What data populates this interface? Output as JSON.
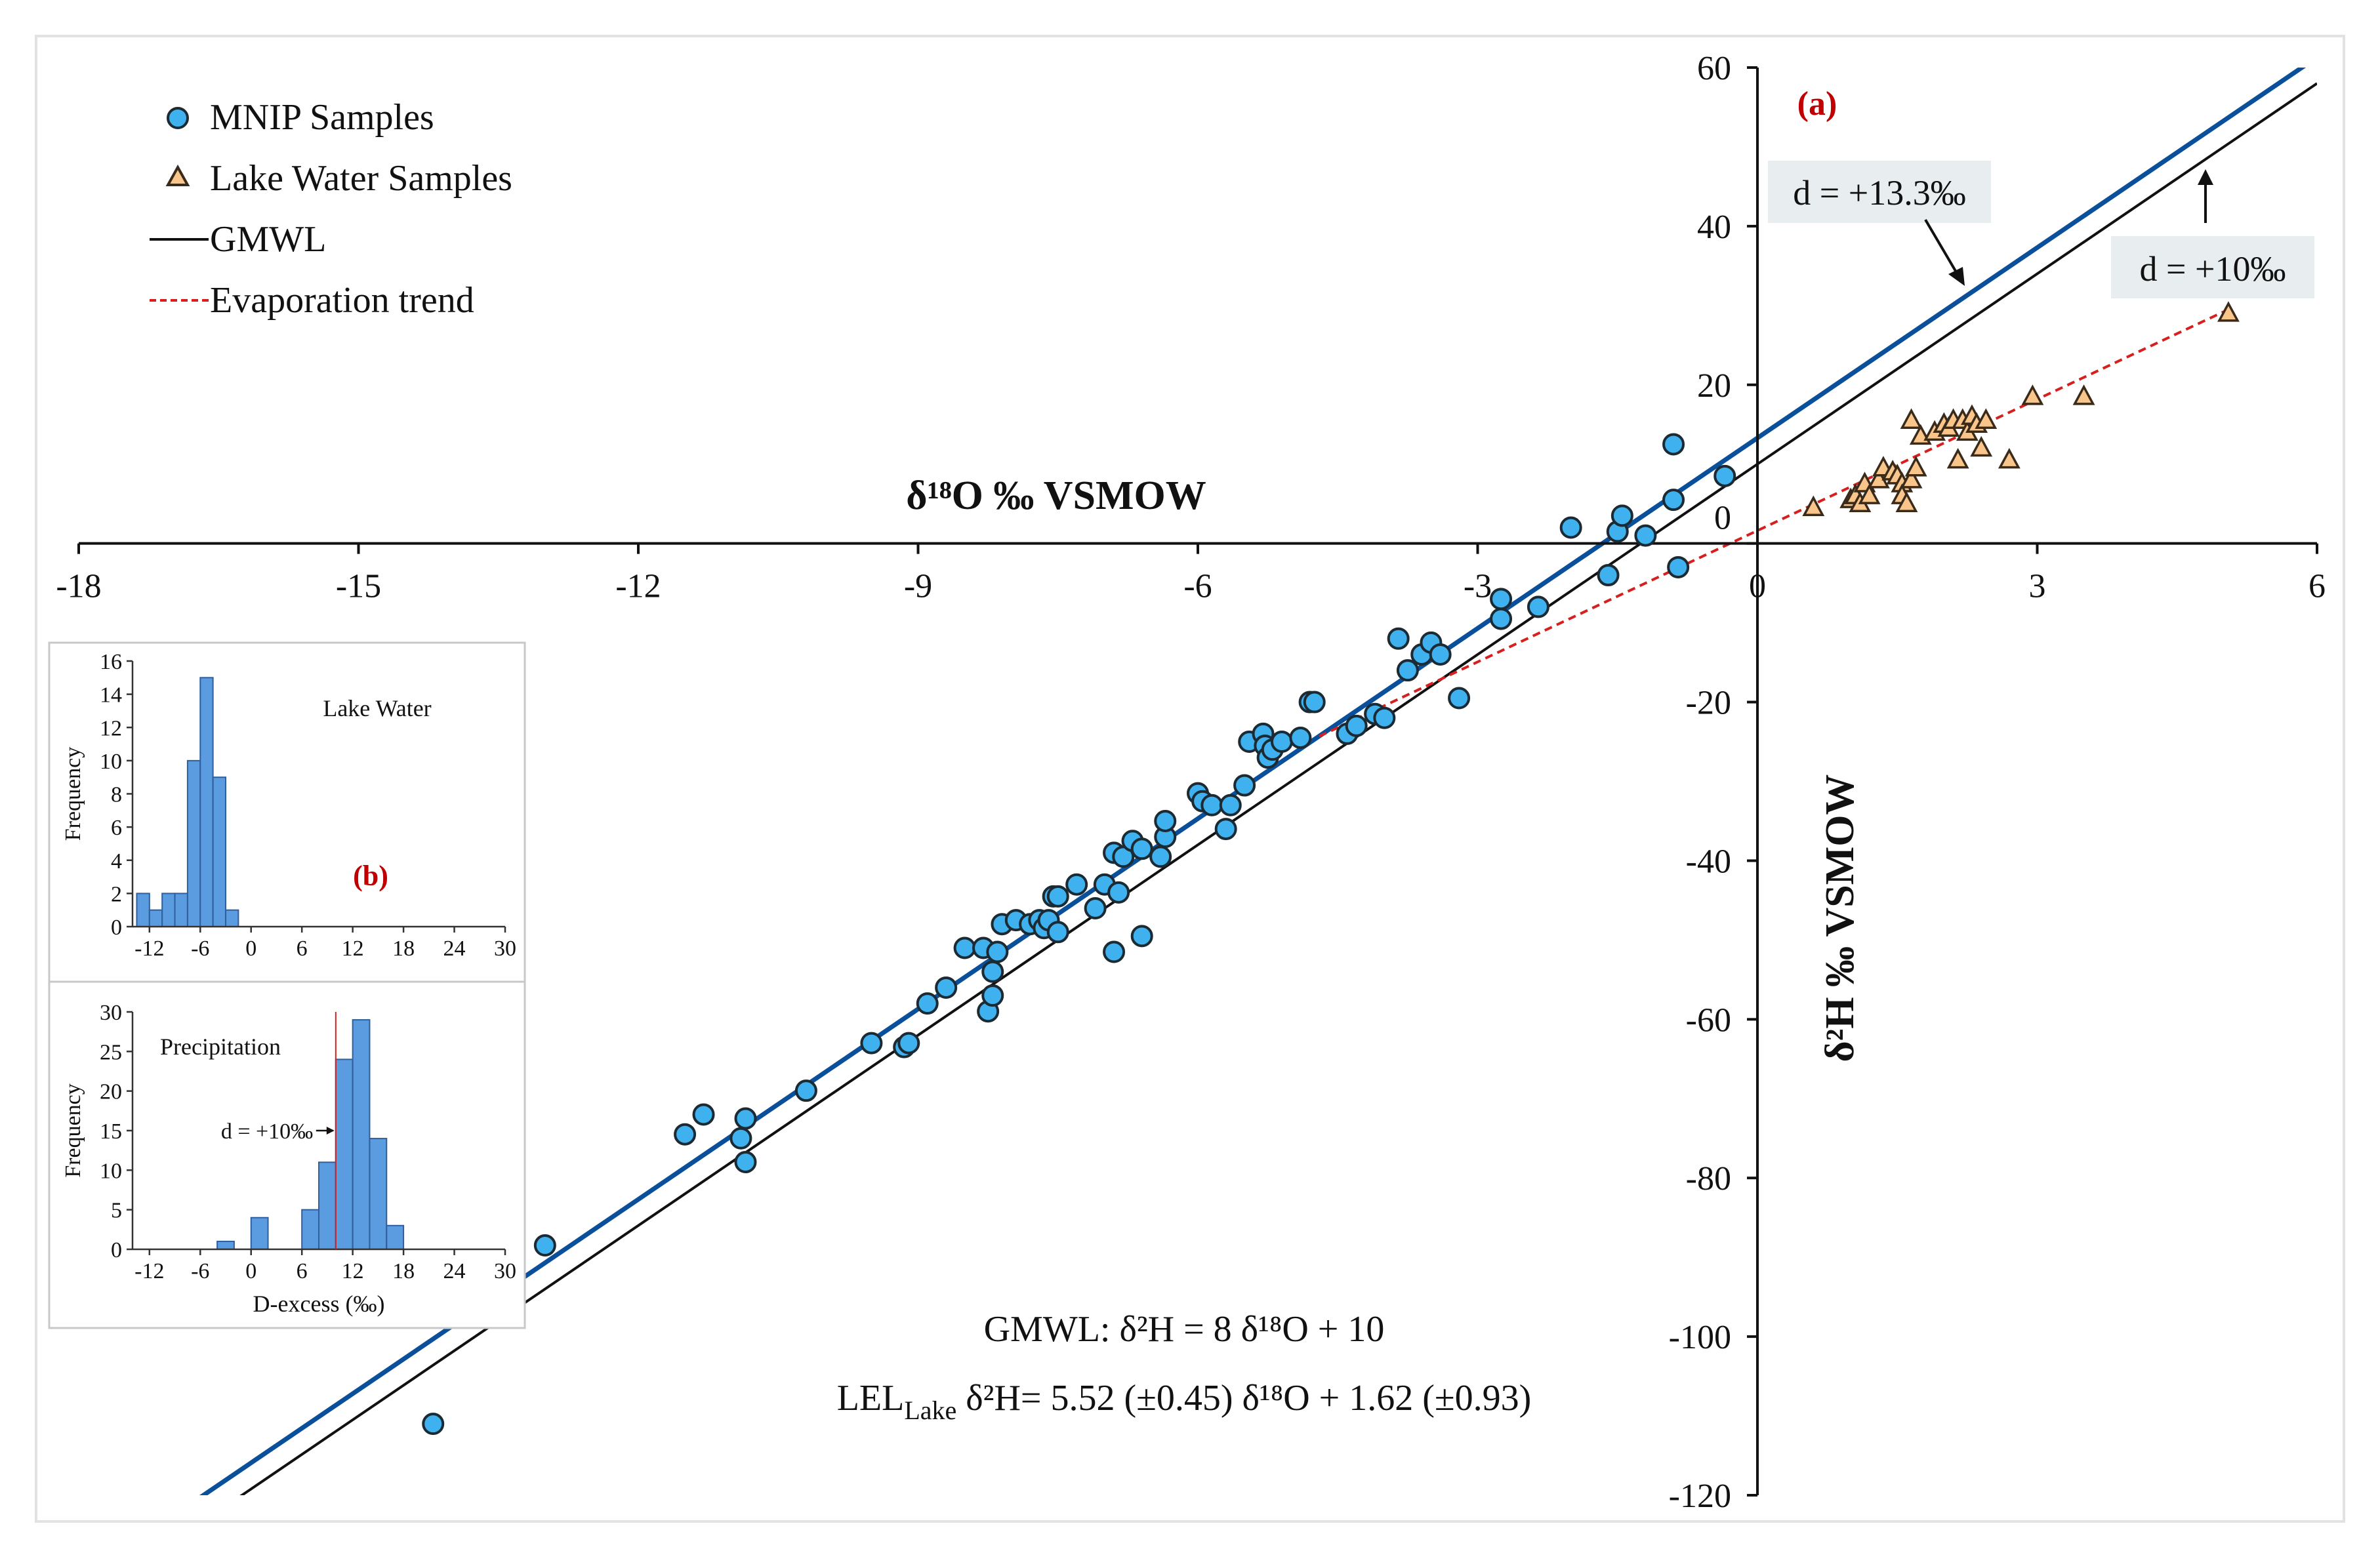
{
  "figure": {
    "panel_a_label": "(a)",
    "panel_b_label": "(b)",
    "colors": {
      "mnip_fill": "#3fb1ef",
      "mnip_stroke": "#1b2a33",
      "lake_fill": "#f9c58b",
      "lake_stroke": "#3a2a1a",
      "gmwl": "#111111",
      "lmwl": "#0a4f9a",
      "evap": "#d6201f",
      "panel_label": "#c00000",
      "hist_bar": "#5b9be0",
      "hist_bar_stroke": "#2f5f9c",
      "callout_bg": "#e8eef0"
    }
  },
  "legend": {
    "mnip": "MNIP Samples",
    "lake": "Lake Water Samples",
    "gmwl": "GMWL",
    "evap": "Evaporation trend"
  },
  "annotations": {
    "d133": "d = +13.3‰",
    "d10": "d = +10‰",
    "eq_gmwl": "GMWL: δ²H = 8 δ¹⁸O + 10",
    "eq_lel_prefix": "LEL",
    "eq_lel_sub": "Lake",
    "eq_lel_rest": " δ²H= 5.52 (±0.45) δ¹⁸O + 1.62 (±0.93)"
  },
  "chart_data": [
    {
      "type": "scatter",
      "xlabel": "δ¹⁸O ‰ VSMOW",
      "ylabel": "δ²H ‰ VSMOW",
      "xlim": [
        -18,
        6
      ],
      "ylim": [
        -120,
        60
      ],
      "xticks": [
        -18,
        -15,
        -12,
        -9,
        -6,
        -3,
        0,
        3,
        6
      ],
      "yticks": [
        -120,
        -100,
        -80,
        -60,
        -40,
        -20,
        0,
        20,
        40,
        60
      ],
      "ytick_labels": [
        "-120",
        "-100",
        "-80",
        "-60",
        "-40",
        "-20",
        "0",
        "20",
        "40",
        "60"
      ],
      "xtick_labels": [
        "-18",
        "-15",
        "-12",
        "-9",
        "-6",
        "-3",
        "0",
        "3",
        "6"
      ],
      "lines": [
        {
          "name": "GMWL",
          "slope": 8,
          "intercept": 10
        },
        {
          "name": "LMWL",
          "slope": 8,
          "intercept": 13.3
        },
        {
          "name": "Evaporation trend",
          "slope": 5.52,
          "intercept": 1.62,
          "x_range": [
            -4.7,
            5
          ]
        }
      ],
      "series": [
        {
          "name": "MNIP Samples",
          "points": [
            [
              -14.2,
              -111
            ],
            [
              -13.0,
              -88.5
            ],
            [
              -11.5,
              -74.5
            ],
            [
              -11.3,
              -72
            ],
            [
              -10.9,
              -75
            ],
            [
              -10.85,
              -72.5
            ],
            [
              -10.85,
              -78
            ],
            [
              -10.2,
              -69
            ],
            [
              -9.5,
              -63
            ],
            [
              -9.15,
              -63.5
            ],
            [
              -9.1,
              -63
            ],
            [
              -8.9,
              -58
            ],
            [
              -8.7,
              -56
            ],
            [
              -8.5,
              -51
            ],
            [
              -8.3,
              -51
            ],
            [
              -8.25,
              -59
            ],
            [
              -8.2,
              -57
            ],
            [
              -8.15,
              -51.5
            ],
            [
              -8.2,
              -54
            ],
            [
              -8.1,
              -48
            ],
            [
              -7.95,
              -47.5
            ],
            [
              -7.8,
              -48
            ],
            [
              -7.7,
              -47.5
            ],
            [
              -7.65,
              -48.5
            ],
            [
              -7.6,
              -47.5
            ],
            [
              -7.55,
              -44.5
            ],
            [
              -7.5,
              -44.5
            ],
            [
              -7.5,
              -49
            ],
            [
              -7.3,
              -43
            ],
            [
              -7.1,
              -46
            ],
            [
              -7.0,
              -43
            ],
            [
              -6.9,
              -39
            ],
            [
              -6.85,
              -44
            ],
            [
              -6.9,
              -51.5
            ],
            [
              -6.8,
              -39.5
            ],
            [
              -6.7,
              -37.5
            ],
            [
              -6.6,
              -49.5
            ],
            [
              -6.6,
              -38.5
            ],
            [
              -6.4,
              -39.5
            ],
            [
              -6.35,
              -37
            ],
            [
              -6.35,
              -35
            ],
            [
              -6.0,
              -31.5
            ],
            [
              -5.95,
              -32.5
            ],
            [
              -5.85,
              -33
            ],
            [
              -5.7,
              -36
            ],
            [
              -5.65,
              -33
            ],
            [
              -5.5,
              -30.5
            ],
            [
              -5.45,
              -25
            ],
            [
              -5.3,
              -24
            ],
            [
              -5.28,
              -25.5
            ],
            [
              -5.25,
              -27
            ],
            [
              -5.2,
              -26
            ],
            [
              -5.1,
              -25
            ],
            [
              -4.9,
              -24.5
            ],
            [
              -4.8,
              -20
            ],
            [
              -4.75,
              -20
            ],
            [
              -4.4,
              -24
            ],
            [
              -4.3,
              -23
            ],
            [
              -4.1,
              -21.5
            ],
            [
              -4.0,
              -22
            ],
            [
              -3.85,
              -12
            ],
            [
              -3.75,
              -16
            ],
            [
              -3.6,
              -14
            ],
            [
              -3.5,
              -12.5
            ],
            [
              -3.4,
              -14
            ],
            [
              -3.2,
              -19.5
            ],
            [
              -2.75,
              -7
            ],
            [
              -2.75,
              -9.5
            ],
            [
              -2.35,
              -8
            ],
            [
              -2.0,
              2
            ],
            [
              -1.6,
              -4
            ],
            [
              -1.5,
              1.5
            ],
            [
              -1.45,
              3.5
            ],
            [
              -1.2,
              1
            ],
            [
              -0.9,
              12.5
            ],
            [
              -0.9,
              5.5
            ],
            [
              -0.85,
              -3
            ],
            [
              -0.35,
              8.5
            ]
          ]
        },
        {
          "name": "Lake Water Samples",
          "points": [
            [
              0.6,
              4.5
            ],
            [
              1.0,
              5.5
            ],
            [
              1.05,
              6
            ],
            [
              1.1,
              5
            ],
            [
              1.15,
              7.5
            ],
            [
              1.2,
              6
            ],
            [
              1.3,
              8
            ],
            [
              1.35,
              9.5
            ],
            [
              1.45,
              9
            ],
            [
              1.5,
              8.5
            ],
            [
              1.55,
              7.5
            ],
            [
              1.55,
              6
            ],
            [
              1.6,
              5
            ],
            [
              1.65,
              8
            ],
            [
              1.7,
              9.5
            ],
            [
              1.65,
              15.5
            ],
            [
              1.75,
              13.5
            ],
            [
              1.9,
              14
            ],
            [
              2.0,
              15
            ],
            [
              2.05,
              14.5
            ],
            [
              2.1,
              15.5
            ],
            [
              2.15,
              10.5
            ],
            [
              2.2,
              15.5
            ],
            [
              2.25,
              14
            ],
            [
              2.3,
              16
            ],
            [
              2.35,
              15
            ],
            [
              2.4,
              12
            ],
            [
              2.45,
              15.5
            ],
            [
              2.7,
              10.5
            ],
            [
              2.95,
              18.5
            ],
            [
              3.5,
              18.5
            ],
            [
              5.05,
              29
            ]
          ]
        }
      ]
    },
    {
      "type": "bar",
      "title": "Lake Water",
      "xlabel": "",
      "ylabel": "Frequency",
      "xticks": [
        -12,
        -6,
        0,
        6,
        12,
        18,
        24,
        30
      ],
      "xtick_labels": [
        "-12",
        "-6",
        "0",
        "6",
        "12",
        "18",
        "24",
        "30"
      ],
      "yticks": [
        0,
        2,
        4,
        6,
        8,
        10,
        12,
        14,
        16
      ],
      "ytick_labels": [
        "0",
        "2",
        "4",
        "6",
        "8",
        "10",
        "12",
        "14",
        "16"
      ],
      "xlim": [
        -14,
        30
      ],
      "ylim": [
        0,
        16
      ],
      "bin_width": 1.5,
      "bin_starts": [
        -13.5,
        -12,
        -10.5,
        -9,
        -7.5,
        -6,
        -4.5,
        -3,
        -1.5,
        0
      ],
      "values": [
        2,
        1,
        2,
        2,
        10,
        15,
        9,
        1,
        0,
        0
      ],
      "bin_starts_note": ""
    },
    {
      "type": "bar",
      "title": "Precipitation",
      "xlabel": "D-excess (‰)",
      "ylabel": "Frequency",
      "xticks": [
        -12,
        -6,
        0,
        6,
        12,
        18,
        24,
        30
      ],
      "xtick_labels": [
        "-12",
        "-6",
        "0",
        "6",
        "12",
        "18",
        "24",
        "30"
      ],
      "yticks": [
        0,
        5,
        10,
        15,
        20,
        25,
        30
      ],
      "ytick_labels": [
        "0",
        "5",
        "10",
        "15",
        "20",
        "25",
        "30"
      ],
      "xlim": [
        -14,
        30
      ],
      "ylim": [
        0,
        30
      ],
      "bin_width": 2,
      "bin_starts": [
        -4,
        0,
        4,
        6,
        8,
        10,
        12,
        14,
        16,
        18
      ],
      "values": [
        1,
        4,
        0,
        5,
        11,
        24,
        29,
        14,
        3,
        0
      ],
      "vline": 10,
      "annotation": "d = +10‰"
    }
  ]
}
